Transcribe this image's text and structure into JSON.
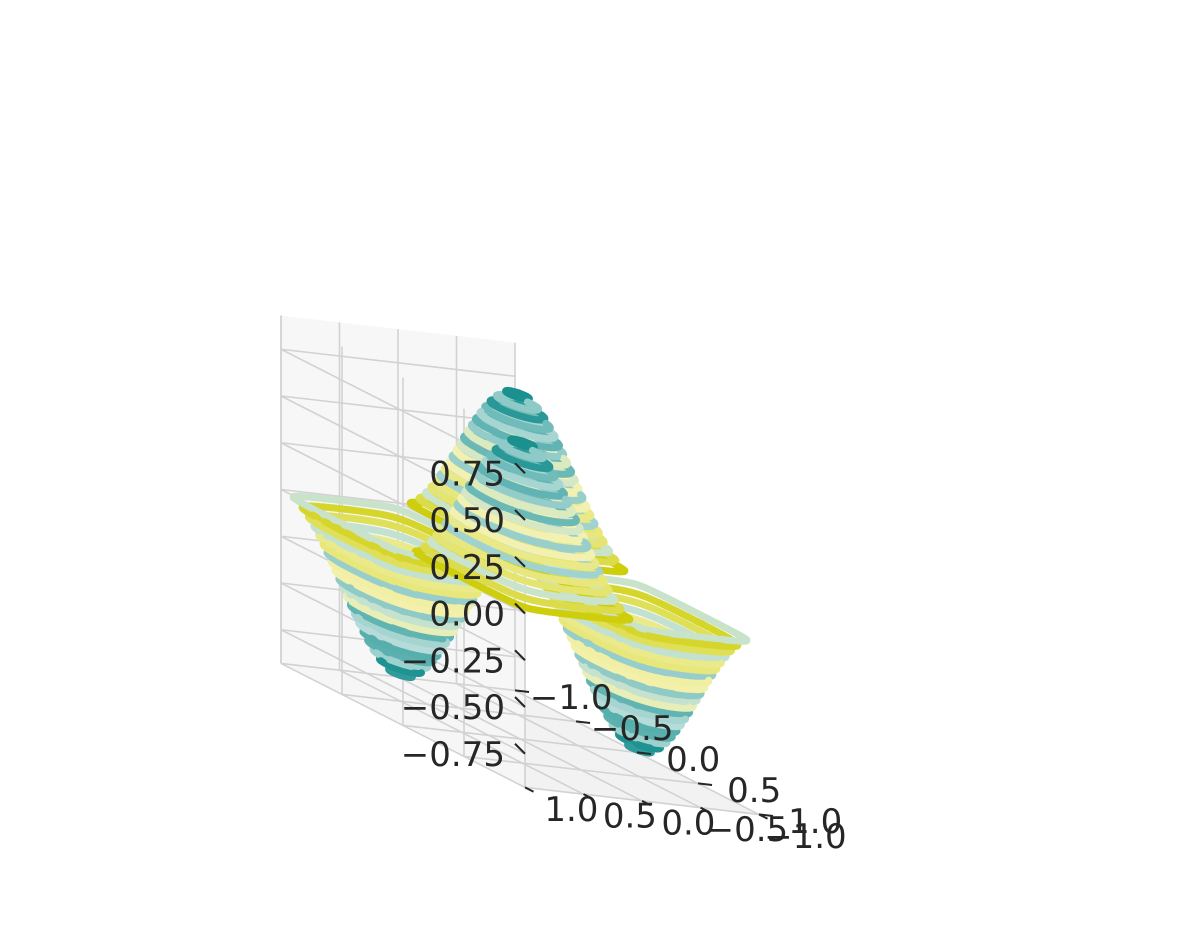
{
  "chart_data": {
    "type": "contour3d",
    "title": "",
    "xlabel": "",
    "ylabel": "",
    "zlabel": "",
    "x_range": [
      -1.0,
      1.0
    ],
    "y_range": [
      -1.0,
      1.0
    ],
    "z_range": [
      -0.75,
      0.75
    ],
    "x_ticks": [
      "−1.0",
      "−0.5",
      "0.0",
      "0.5",
      "1.0"
    ],
    "y_ticks": [
      "−1.0",
      "−0.5",
      "0.0",
      "0.5",
      "1.0"
    ],
    "z_ticks": [
      "−0.75",
      "−0.50",
      "−0.25",
      "0.00",
      "0.25",
      "0.50",
      "0.75"
    ],
    "surface": {
      "description": "z = 0.8 * sin(pi*x) * sin(pi*y) style surface with two peaks and two troughs",
      "peaks": [
        {
          "x": -0.5,
          "y": -0.5,
          "z": 0.8
        },
        {
          "x": 0.5,
          "y": 0.5,
          "z": 0.8
        }
      ],
      "troughs": [
        {
          "x": -0.5,
          "y": 0.5,
          "z": -0.8
        },
        {
          "x": 0.5,
          "y": -0.5,
          "z": -0.8
        }
      ],
      "levels": 40
    },
    "colormap": [
      "#0f8a8a",
      "#6ab9b7",
      "#b5dcd8",
      "#f4f2b0",
      "#e6e67a",
      "#cccc00"
    ],
    "grid": true,
    "pane_color": "#f2f2f2"
  }
}
